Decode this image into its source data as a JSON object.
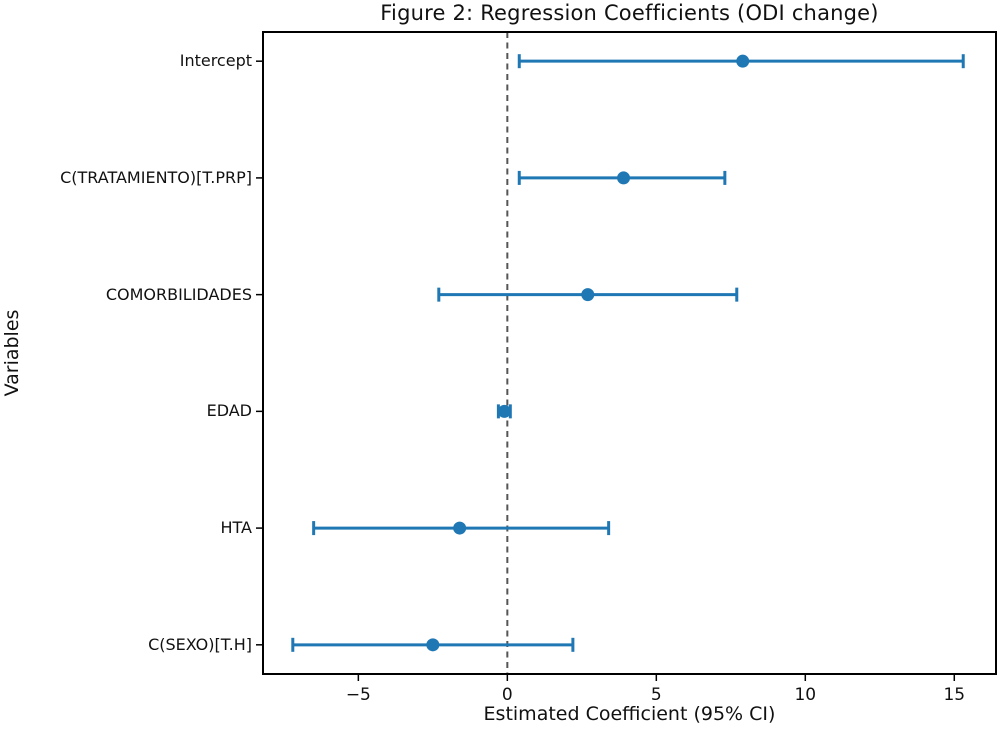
{
  "chart_data": {
    "type": "scatter",
    "subtype": "forest-plot-errorbar",
    "title": "Figure 2: Regression Coefficients (ODI change)",
    "xlabel": "Estimated Coefficient (95% CI)",
    "ylabel": "Variables",
    "categories": [
      "Intercept",
      "C(TRATAMIENTO)[T.PRP]",
      "COMORBILIDADES",
      "EDAD",
      "HTA",
      "C(SEXO)[T.H]"
    ],
    "series": [
      {
        "name": "coefficient",
        "values": [
          7.9,
          3.9,
          2.7,
          -0.1,
          -1.6,
          -2.5
        ],
        "ci_low": [
          0.4,
          0.4,
          -2.3,
          -0.3,
          -6.5,
          -7.2
        ],
        "ci_high": [
          15.3,
          7.3,
          7.7,
          0.1,
          3.4,
          2.2
        ]
      }
    ],
    "xlim": [
      -8.2,
      16.4
    ],
    "x_ticks": [
      {
        "value": -5,
        "label": "−5"
      },
      {
        "value": 0,
        "label": "0"
      },
      {
        "value": 5,
        "label": "5"
      },
      {
        "value": 10,
        "label": "10"
      },
      {
        "value": 15,
        "label": "15"
      }
    ],
    "reference_line_x": 0,
    "grid": false,
    "legend": false,
    "colors": {
      "marker": "#1f77b4",
      "errorbar": "#1f77b4",
      "reference_line": "#555555",
      "axis": "#000000",
      "background": "#ffffff"
    }
  }
}
